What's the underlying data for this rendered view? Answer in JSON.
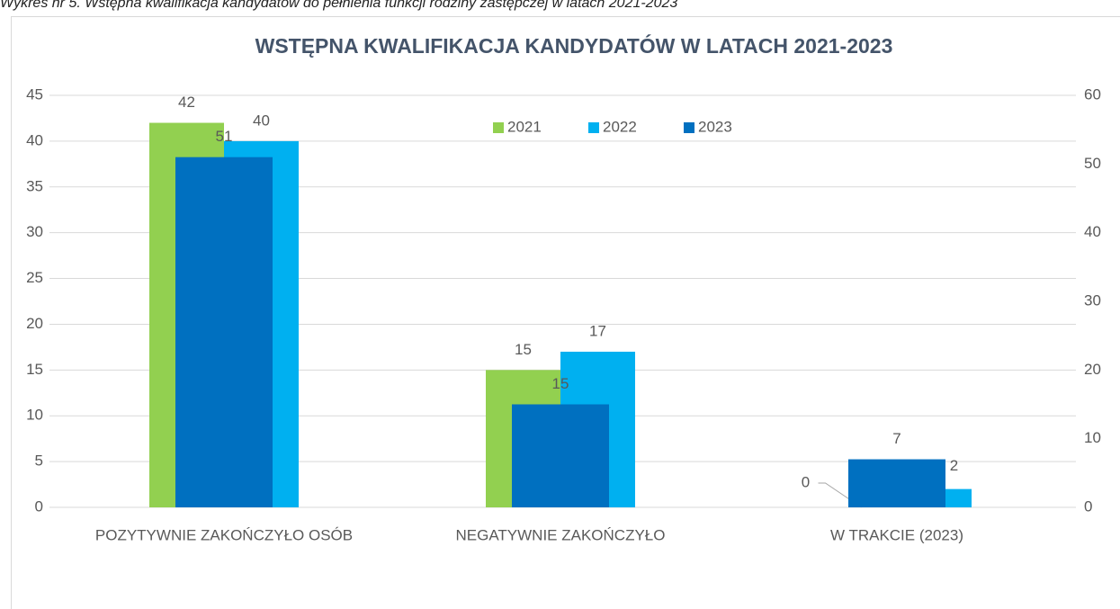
{
  "chart_data": {
    "type": "bar",
    "caption": "Wykres nr 5. Wstępna kwalifikacja kandydatów do pełnienia funkcji rodziny zastępczej w latach 2021-2023",
    "title": "WSTĘPNA KWALIFIKACJA KANDYDATÓW W LATACH 2021-2023",
    "categories": [
      "POZYTYWNIE ZAKOŃCZYŁO OSÓB",
      "NEGATYWNIE ZAKOŃCZYŁO",
      "W TRAKCIE (2023)"
    ],
    "series": [
      {
        "name": "2021",
        "color": "#92d050",
        "values": [
          42,
          15,
          0
        ]
      },
      {
        "name": "2022",
        "color": "#00b0f0",
        "values": [
          40,
          17,
          2
        ]
      },
      {
        "name": "2023",
        "color": "#0070c0",
        "values": [
          51,
          15,
          7
        ],
        "axis": "y2"
      }
    ],
    "ylim": [
      0,
      45
    ],
    "yticks": [
      0,
      5,
      10,
      15,
      20,
      25,
      30,
      35,
      40,
      45
    ],
    "y2lim": [
      0,
      60
    ],
    "y2ticks": [
      0,
      10,
      20,
      30,
      40,
      50,
      60
    ],
    "grid": true,
    "legend": "top"
  }
}
